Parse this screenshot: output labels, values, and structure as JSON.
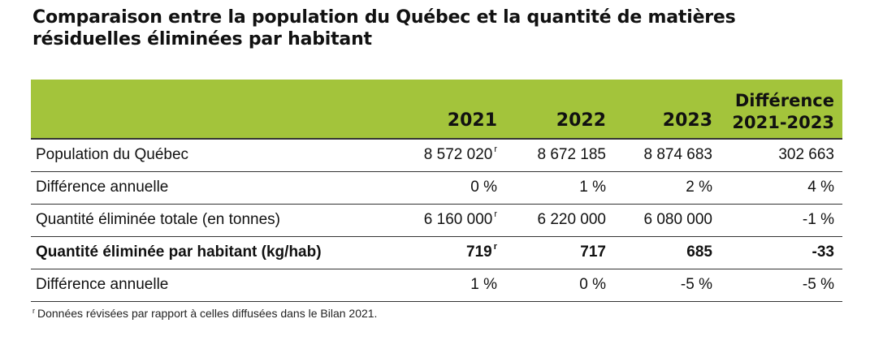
{
  "title": {
    "line1": "Comparaison entre la population du Québec et la quantité de matières",
    "line2": "résiduelles éliminées par habitant"
  },
  "chart_data": {
    "type": "table",
    "columns": [
      "",
      "2021",
      "2022",
      "2023",
      "Différence 2021-2023"
    ],
    "header": {
      "col1": "2021",
      "col2": "2022",
      "col3": "2023",
      "diff_line1": "Différence",
      "diff_line2": "2021-2023"
    },
    "rows": [
      {
        "label": "Population du Québec",
        "v2021": "8 572 020",
        "r2021": "r",
        "v2022": "8 672 185",
        "v2023": "8 874 683",
        "diff": "302 663"
      },
      {
        "label": "Différence annuelle",
        "v2021": "0 %",
        "v2022": "1 %",
        "v2023": "2 %",
        "diff": "4 %"
      },
      {
        "label": "Quantité éliminée totale (en tonnes)",
        "v2021": "6 160 000",
        "r2021": "r",
        "v2022": "6 220 000",
        "v2023": "6 080 000",
        "diff": "-1 %"
      },
      {
        "label": "Quantité éliminée par habitant (kg/hab)",
        "v2021": "719",
        "r2021": "r",
        "v2022": "717",
        "v2023": "685",
        "diff": "-33"
      },
      {
        "label": "Différence annuelle",
        "v2021": "1 %",
        "v2022": "0 %",
        "v2023": "-5 %",
        "diff": "-5 %"
      }
    ],
    "note": {
      "marker": "r",
      "text": "Données révisées par rapport à celles diffusées dans le Bilan 2021."
    }
  },
  "colors": {
    "header_background": "#a3c43b",
    "rule": "#333333",
    "text": "#111111"
  }
}
